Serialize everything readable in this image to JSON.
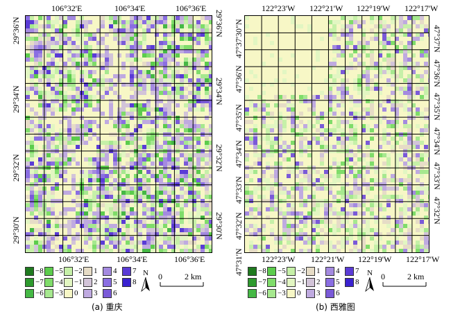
{
  "panels": [
    {
      "id": "a",
      "caption": "(a) 重庆",
      "top_lon_labels": [
        "106°32'E",
        "106°34'E",
        "106°36'E"
      ],
      "bottom_lon_labels": [
        "106°32'E",
        "106°34'E",
        "106°36'E"
      ],
      "left_lat_labels": [
        "29°36'N",
        "29°34'N",
        "29°32'N",
        "29°30'N"
      ],
      "right_lat_labels": [
        "29°36'N",
        "29°34'N",
        "29°32'N",
        "29°30'N"
      ],
      "north_label": "N",
      "scale_labels": [
        "0",
        "2 km"
      ]
    },
    {
      "id": "b",
      "caption": "(b) 西雅图",
      "top_lon_labels": [
        "122°23'W",
        "122°21'W",
        "122°19'W",
        "122°17'W"
      ],
      "bottom_lon_labels": [
        "122°23'W",
        "122°21'W",
        "122°19'W",
        "122°17'W"
      ],
      "left_lat_labels": [
        "47°37'30\"N",
        "47°36'N",
        "47°35'N",
        "47°34'N",
        "47°33'N",
        "47°32'N",
        "47°31'N"
      ],
      "right_lat_labels": [
        "47°37'N",
        "47°36'N",
        "47°35'N",
        "47°34'N",
        "47°33'N",
        "47°32'N"
      ],
      "north_label": "N",
      "scale_labels": [
        "0",
        "2 km"
      ]
    }
  ],
  "legend": [
    {
      "value": "−8",
      "color": "#1f7a1f"
    },
    {
      "value": "−7",
      "color": "#2e9a2e"
    },
    {
      "value": "−6",
      "color": "#45b845"
    },
    {
      "value": "−5",
      "color": "#5ccc4c"
    },
    {
      "value": "−4",
      "color": "#7fdc6a"
    },
    {
      "value": "−3",
      "color": "#a6e88f"
    },
    {
      "value": "−2",
      "color": "#c6f0a8"
    },
    {
      "value": "−1",
      "color": "#e2f6c2"
    },
    {
      "value": "0",
      "color": "#f7f7c6"
    },
    {
      "value": "1",
      "color": "#e6dcc6"
    },
    {
      "value": "2",
      "color": "#d2c4d8"
    },
    {
      "value": "3",
      "color": "#bfaae0"
    },
    {
      "value": "4",
      "color": "#a48ae0"
    },
    {
      "value": "5",
      "color": "#8a6ee2"
    },
    {
      "value": "6",
      "color": "#7a5ad8"
    },
    {
      "value": "7",
      "color": "#5a3bd6"
    },
    {
      "value": "8",
      "color": "#3a22d0"
    }
  ]
}
